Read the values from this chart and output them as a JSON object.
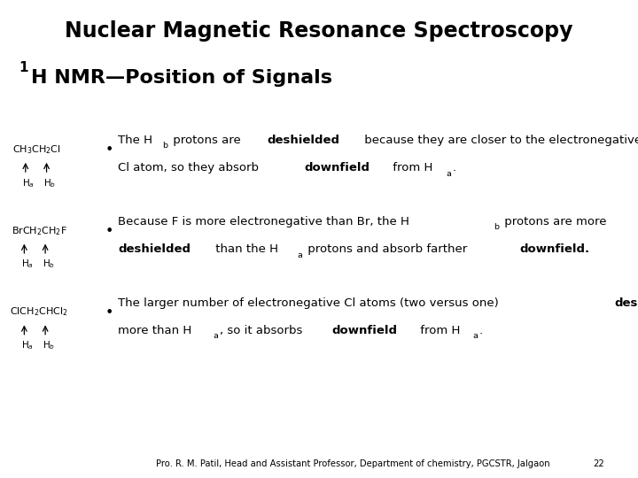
{
  "title": "Nuclear Magnetic Resonance Spectroscopy",
  "subtitle_sup": "1",
  "subtitle_main": "H NMR—Position of Signals",
  "background_color": "#ffffff",
  "title_fontsize": 17,
  "subtitle_fontsize": 16,
  "body_fontsize": 9.5,
  "mol_fontsize": 8.0,
  "footer_text": "Pro. R. M. Patil, Head and Assistant Professor, Department of chemistry, PGCSTR, Jalgaon",
  "footer_page": "22",
  "fig_width": 7.2,
  "fig_height": 5.4,
  "fig_dpi": 100
}
